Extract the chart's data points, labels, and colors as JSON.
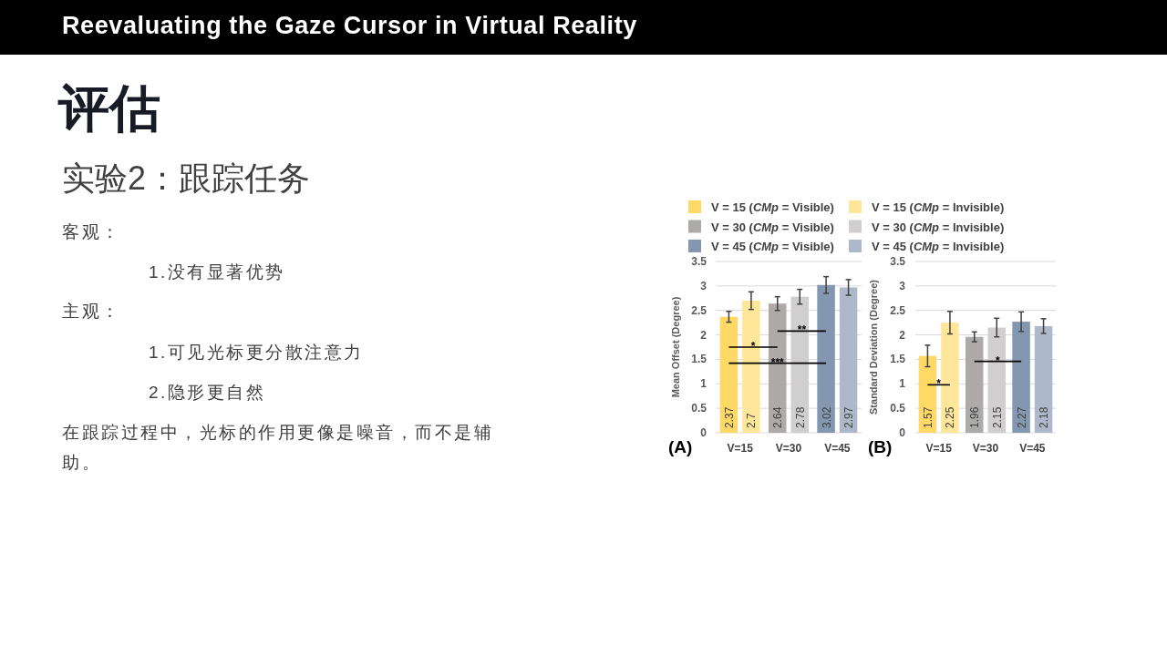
{
  "chart_data": [
    {
      "type": "other",
      "title": "Reevaluating the Gaze Cursor in Virtual Reality",
      "subtitle": "评估",
      "annotations": [
        "实验2：跟踪任务",
        "客观：",
        "1.没有显著优势",
        "主观：",
        "1.可见光标更分散注意力",
        "2.隐形更自然",
        "在跟踪过程中，光标的作用更像是噪音，而不是辅助。"
      ]
    },
    {
      "type": "bar",
      "ylabel": "Mean Offset (Degree)",
      "categories": [
        "V=15",
        "V=30",
        "V=45"
      ],
      "series": [
        {
          "name": "V = 15 (*CMp* = Visible)",
          "color": "#ffd966",
          "values": [
            2.37,
            null,
            null
          ],
          "errors": [
            0.11,
            null,
            null
          ]
        },
        {
          "name": "V = 15 (*CMp* = Invisible)",
          "color": "#ffe699",
          "values": [
            2.7,
            null,
            null
          ],
          "errors": [
            0.18,
            null,
            null
          ]
        },
        {
          "name": "V = 30 (*CMp* = Visible)",
          "color": "#aeaaaa",
          "values": [
            null,
            2.64,
            null
          ],
          "errors": [
            null,
            0.14,
            null
          ]
        },
        {
          "name": "V = 30 (*CMp* = Invisible)",
          "color": "#d0cece",
          "values": [
            null,
            2.78,
            null
          ],
          "errors": [
            null,
            0.15,
            null
          ]
        },
        {
          "name": "V = 45 (*CMp* = Visible)",
          "color": "#8497b0",
          "values": [
            null,
            null,
            3.02
          ],
          "errors": [
            null,
            null,
            0.17
          ]
        },
        {
          "name": "V = 45 (*CMp* = Invisible)",
          "color": "#adb9ca",
          "values": [
            null,
            null,
            2.97
          ],
          "errors": [
            null,
            null,
            0.16
          ]
        }
      ],
      "ylim": [
        0,
        3.5
      ],
      "yticks": [
        0,
        0.5,
        1,
        1.5,
        2,
        2.5,
        3,
        3.5
      ],
      "grid": "y",
      "legend": "top",
      "data_labels": true,
      "annotations": [
        "(A)",
        "*",
        "**",
        "***"
      ]
    },
    {
      "type": "bar",
      "ylabel": "Standard Deviation (Degree)",
      "categories": [
        "V=15",
        "V=30",
        "V=45"
      ],
      "series": [
        {
          "color": "#ffd966",
          "values": [
            1.57,
            null,
            null
          ],
          "errors": [
            0.22,
            null,
            null
          ]
        },
        {
          "color": "#ffe699",
          "values": [
            2.25,
            null,
            null
          ],
          "errors": [
            0.23,
            null,
            null
          ]
        },
        {
          "color": "#aeaaaa",
          "values": [
            null,
            1.96,
            null
          ],
          "errors": [
            null,
            0.1,
            null
          ]
        },
        {
          "color": "#d0cece",
          "values": [
            null,
            2.15,
            null
          ],
          "errors": [
            null,
            0.19,
            null
          ]
        },
        {
          "color": "#8497b0",
          "values": [
            null,
            null,
            2.27
          ],
          "errors": [
            null,
            null,
            0.2
          ]
        },
        {
          "color": "#adb9ca",
          "values": [
            null,
            null,
            2.18
          ],
          "errors": [
            null,
            null,
            0.15
          ]
        }
      ],
      "ylim": [
        0,
        3.5
      ],
      "yticks": [
        0,
        0.5,
        1,
        1.5,
        2,
        2.5,
        3,
        3.5
      ],
      "grid": "y",
      "data_labels": true,
      "annotations": [
        "(B)",
        "*",
        "*"
      ]
    }
  ]
}
